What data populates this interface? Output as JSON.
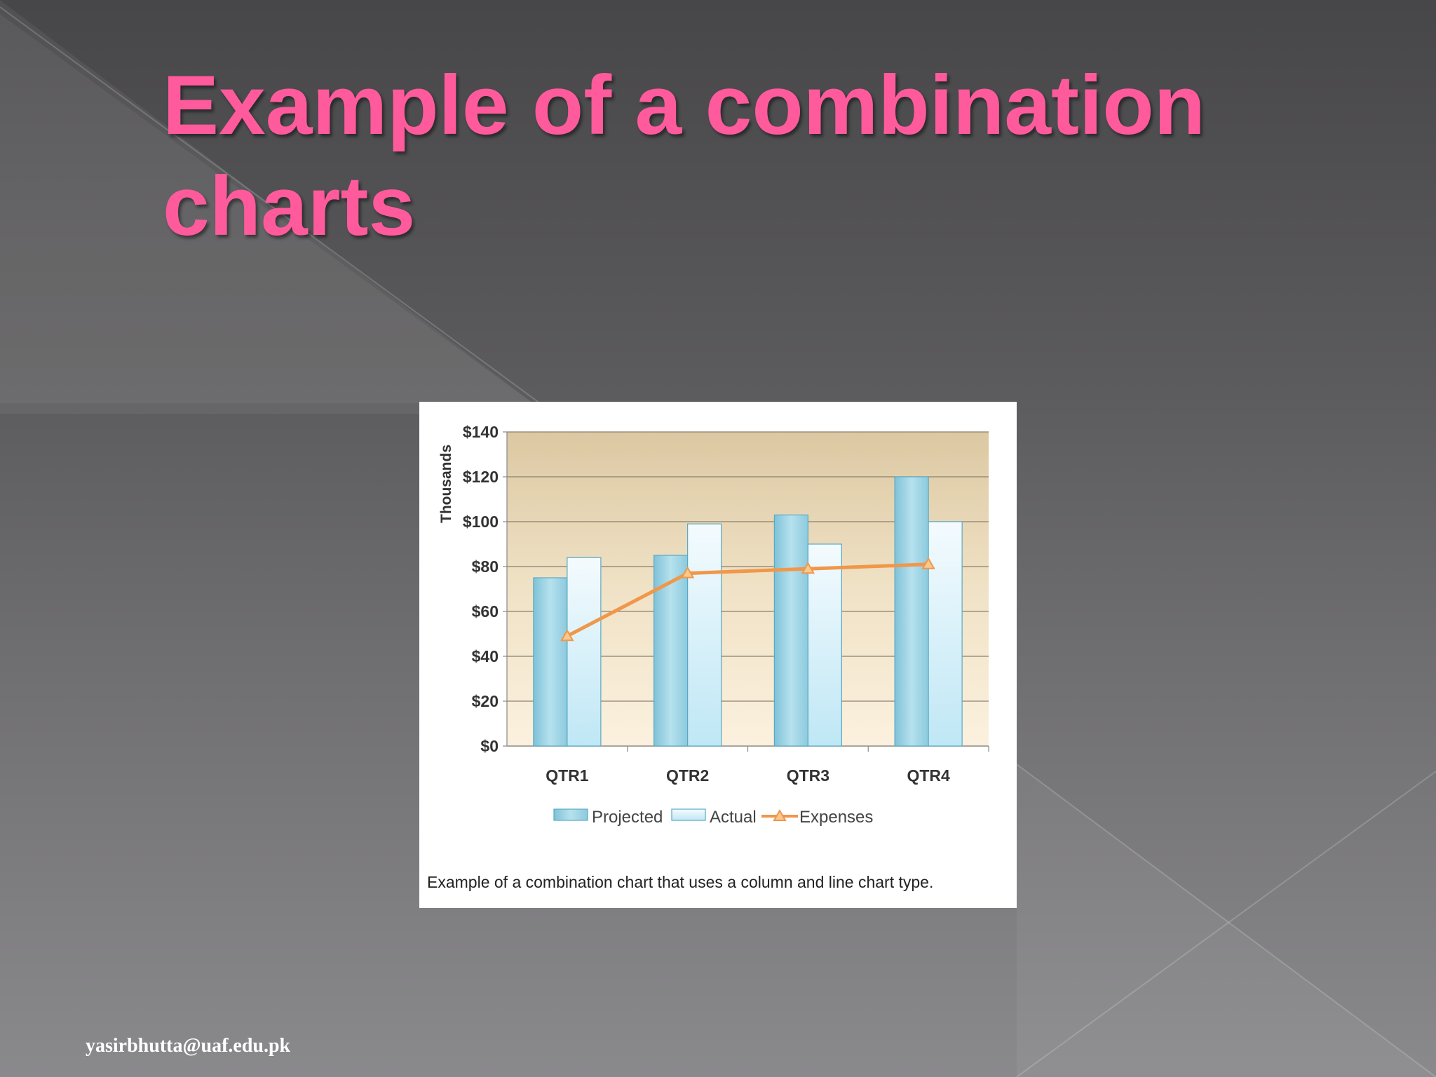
{
  "slide": {
    "title": "Example of a combination charts",
    "footer_email": "yasirbhutta@uaf.edu.pk"
  },
  "colors": {
    "title": "#ff5b9c",
    "projected": "#9fd6e6",
    "actual": "#dff4fb",
    "expenses": "#f0974a"
  },
  "caption": "Example of a combination chart that uses a column and line chart type.",
  "chart_data": {
    "type": "bar",
    "categories": [
      "QTR1",
      "QTR2",
      "QTR3",
      "QTR4"
    ],
    "series": [
      {
        "name": "Projected",
        "type": "bar",
        "values": [
          75,
          85,
          103,
          120
        ]
      },
      {
        "name": "Actual",
        "type": "bar",
        "values": [
          84,
          99,
          90,
          100
        ]
      },
      {
        "name": "Expenses",
        "type": "line",
        "values": [
          49,
          77,
          79,
          81
        ]
      }
    ],
    "yticks": [
      "$0",
      "$20",
      "$40",
      "$60",
      "$80",
      "$100",
      "$120",
      "$140"
    ],
    "ylabel": "Thousands",
    "xlabel": "",
    "title": "",
    "ylim": [
      0,
      140
    ],
    "grid": true,
    "legend": "bottom"
  }
}
